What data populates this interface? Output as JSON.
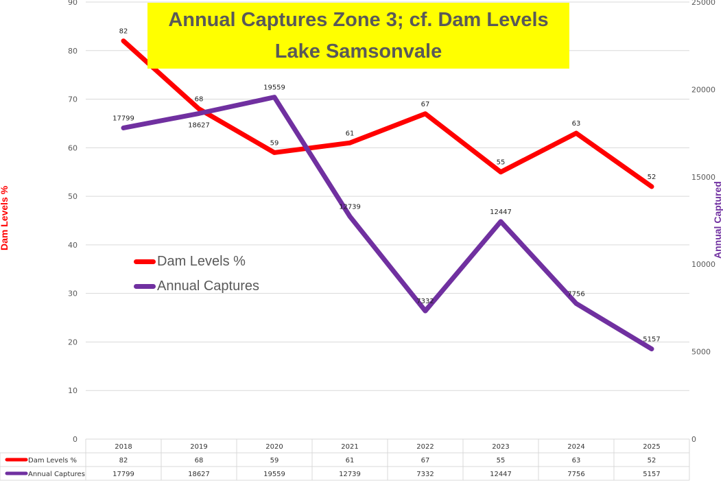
{
  "chart_data": {
    "type": "line",
    "title_line1": "Annual Captures Zone 3; cf. Dam Levels",
    "title_line2": "Lake Samsonvale",
    "categories": [
      "2018",
      "2019",
      "2020",
      "2021",
      "2022",
      "2023",
      "2024",
      "2025"
    ],
    "series": [
      {
        "name": "Dam Levels %",
        "axis": "left",
        "color": "#ff0000",
        "values": [
          82,
          68,
          59,
          61,
          67,
          55,
          63,
          52
        ]
      },
      {
        "name": "Annual Captures",
        "axis": "right",
        "color": "#7030a0",
        "values": [
          17799,
          18627,
          19559,
          12739,
          7332,
          12447,
          7756,
          5157
        ]
      }
    ],
    "ylabel_left": "Dam Levels %",
    "ylabel_right": "Annual Captured",
    "ylim_left": [
      0,
      90
    ],
    "yticks_left": [
      0,
      10,
      20,
      30,
      40,
      50,
      60,
      70,
      80,
      90
    ],
    "ylim_right": [
      0,
      25000
    ],
    "yticks_right": [
      0,
      5000,
      10000,
      15000,
      20000,
      25000
    ],
    "grid": true,
    "legend": "center-left",
    "data_table": true
  }
}
